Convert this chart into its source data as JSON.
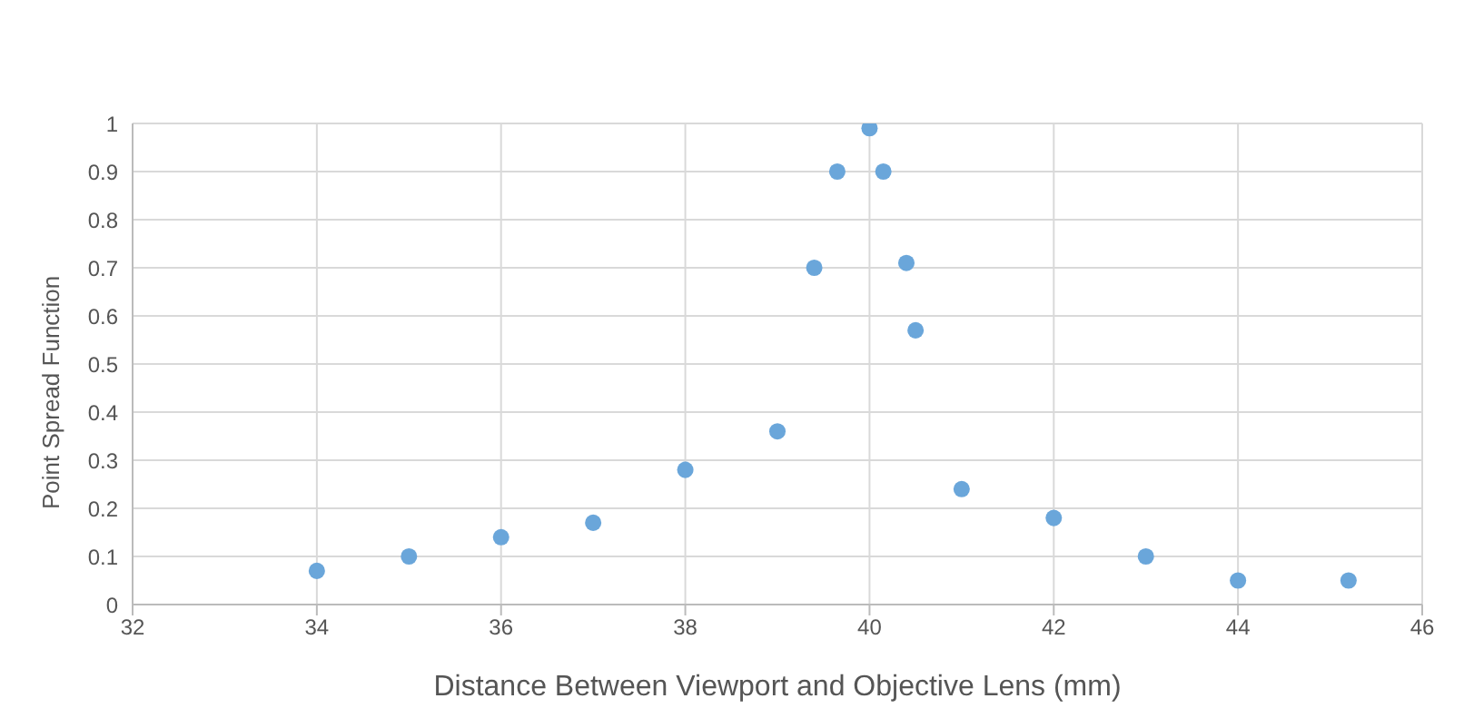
{
  "chart_data": {
    "type": "scatter",
    "xlabel": "Distance Between Viewport and Objective Lens (mm)",
    "ylabel": "Point Spread Function",
    "x": [
      34,
      35,
      36,
      37,
      38,
      39,
      39.4,
      39.65,
      40,
      40.15,
      40.4,
      40.5,
      41,
      42,
      43,
      44,
      45.2
    ],
    "series": [
      {
        "color": "#6aa6da",
        "values": [
          0.07,
          0.1,
          0.14,
          0.17,
          0.28,
          0.36,
          0.7,
          0.9,
          0.99,
          0.9,
          0.71,
          0.57,
          0.24,
          0.18,
          0.1,
          0.05,
          0.05
        ]
      }
    ],
    "xlim": [
      32,
      46
    ],
    "xticks": [
      32,
      34,
      36,
      38,
      40,
      42,
      44,
      46
    ],
    "ylim": [
      0,
      1
    ],
    "yticks": [
      0,
      0.1,
      0.2,
      0.3,
      0.4,
      0.5,
      0.6,
      0.7,
      0.8,
      0.9,
      1
    ],
    "grid": true,
    "marker": "circle",
    "legend": false
  }
}
